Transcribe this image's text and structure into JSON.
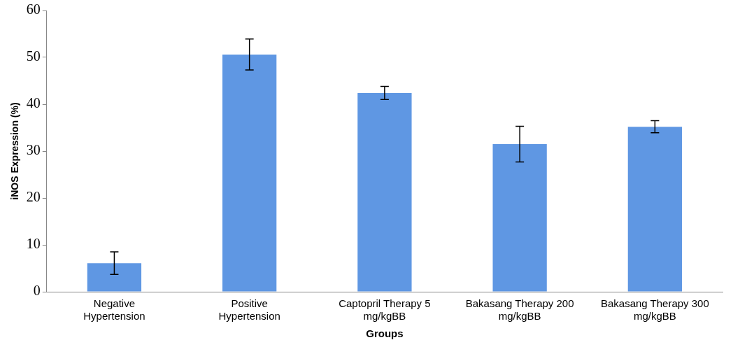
{
  "chart_data": {
    "type": "bar",
    "categories": [
      "Negative Hypertension",
      "Positive Hypertension",
      "Captopril Therapy 5 mg/kgBB",
      "Bakasang Therapy 200 mg/kgBB",
      "Bakasang Therapy 300 mg/kgBB"
    ],
    "values": [
      6.1,
      50.6,
      42.4,
      31.5,
      35.2
    ],
    "errors": [
      2.4,
      3.3,
      1.4,
      3.8,
      1.3
    ],
    "color": "#5f97e3",
    "xlabel": "Groups",
    "ylabel": "iNOS Expression (%)",
    "ylim": [
      0,
      60
    ],
    "yticks": [
      0,
      10,
      20,
      30,
      40,
      50,
      60
    ],
    "grid": false
  }
}
